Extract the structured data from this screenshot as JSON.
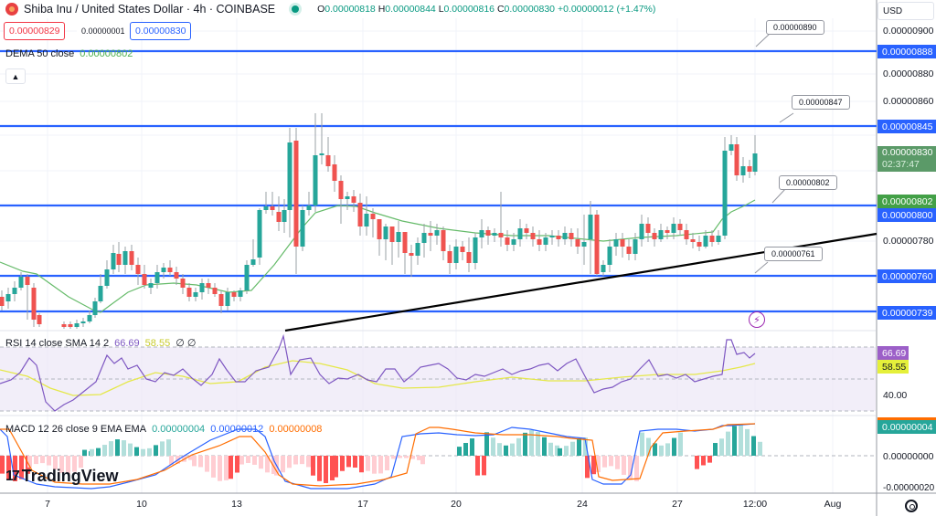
{
  "header": {
    "symbol_title": "Shiba Inu / United States Dollar · 4h · COINBASE",
    "ohlc": {
      "o_label": "O",
      "o": "0.00000818",
      "h_label": "H",
      "h": "0.00000844",
      "l_label": "L",
      "l": "0.00000816",
      "c_label": "C",
      "c": "0.00000830",
      "change": "+0.00000012 (+1.47%)"
    },
    "sell_price": "0.00000829",
    "spread": "0.00000001",
    "buy_price": "0.00000830",
    "currency": "USD"
  },
  "indicators": {
    "dema": {
      "label": "DEMA 50 close",
      "value": "0.00000802"
    },
    "rsi": {
      "label": "RSI 14 close SMA 14 2",
      "rsi_value": "66.69",
      "sma_value": "58.55",
      "extra": "∅ ∅"
    },
    "macd": {
      "label": "MACD 12 26 close 9 EMA EMA",
      "hist": "0.00000004",
      "macd": "0.00000012",
      "signal": "0.00000008"
    }
  },
  "price_axis": {
    "labels": [
      "0.00000900",
      "0.00000880",
      "0.00000860",
      "0.00000780"
    ],
    "level_tags": [
      "0.00000888",
      "0.00000845",
      "0.00000800",
      "0.00000760",
      "0.00000739"
    ],
    "dema_tag": "0.00000802",
    "last_price_tag": "0.00000830",
    "countdown": "02:37:47",
    "rsi_labels": [
      "40.00"
    ],
    "rsi_tag": "66.69",
    "rsi_sma_tag": "58.55",
    "macd_labels": [
      "0.00000000",
      "-0.00000020"
    ],
    "macd_tag": "0.00000004"
  },
  "callouts": [
    "0.00000890",
    "0.00000847",
    "0.00000802",
    "0.00000761"
  ],
  "time_axis": [
    "7",
    "10",
    "13",
    "17",
    "20",
    "24",
    "27",
    "12:00",
    "Aug"
  ],
  "brand": {
    "logo_text": "TradingView"
  },
  "colors": {
    "up": "#26a69a",
    "down": "#ef5350",
    "level_line": "#2962ff",
    "trendline": "#000000",
    "dema": "#4caf50",
    "rsi": "#7e57c2",
    "rsi_sma": "#e5e84a",
    "macd": "#2962ff",
    "signal": "#ff6d00"
  },
  "chart_data": {
    "type": "candlestick",
    "title": "Shiba Inu / United States Dollar · 4h · COINBASE",
    "x_ticks": [
      "7",
      "10",
      "13",
      "17",
      "20",
      "24",
      "27",
      "12:00",
      "Aug"
    ],
    "ylim": [
      7.35e-06,
      9.05e-06
    ],
    "horizontal_levels": [
      8.88e-06,
      8.45e-06,
      8e-06,
      7.6e-06,
      7.39e-06
    ],
    "trendline": {
      "from": {
        "x": "~14",
        "y": 7.39e-06
      },
      "to": {
        "x": "Aug+",
        "y": 7.82e-06
      }
    },
    "callouts": [
      8.9e-06,
      8.47e-06,
      8.02e-06,
      7.61e-06
    ],
    "last": {
      "open": 8.18e-06,
      "high": 8.44e-06,
      "low": 8.16e-06,
      "close": 8.3e-06,
      "change": 1.2e-07,
      "change_pct": 1.47
    },
    "dema50_last": 8.02e-06,
    "rsi": {
      "period": 14,
      "last": 66.69,
      "sma_last": 58.55,
      "bands": [
        70,
        30
      ],
      "mid": 50
    },
    "macd": {
      "fast": 12,
      "slow": 26,
      "signal": 9,
      "hist_last": 4e-08,
      "macd_last": 1.2e-07,
      "signal_last": 8e-08
    },
    "grid": true
  }
}
